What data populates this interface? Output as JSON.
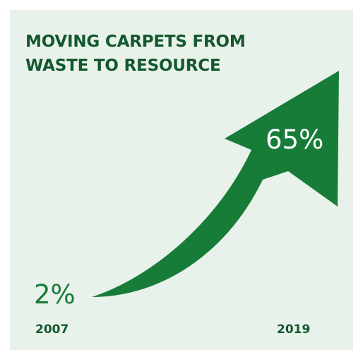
{
  "title": "MOVING CARPETS FROM WASTE TO RESOURCE",
  "colors": {
    "background": "#e8f1ea",
    "arrow": "#187c39",
    "title": "#13582e",
    "value_label_start": "#187c39",
    "value_label_end": "#ffffff"
  },
  "chart_data": {
    "type": "line",
    "title": "MOVING CARPETS FROM WASTE TO RESOURCE",
    "x": [
      "2007",
      "2019"
    ],
    "values": [
      2,
      65
    ],
    "value_labels": [
      "2%",
      "65%"
    ],
    "xlabel": "",
    "ylabel": "",
    "grid": false
  }
}
